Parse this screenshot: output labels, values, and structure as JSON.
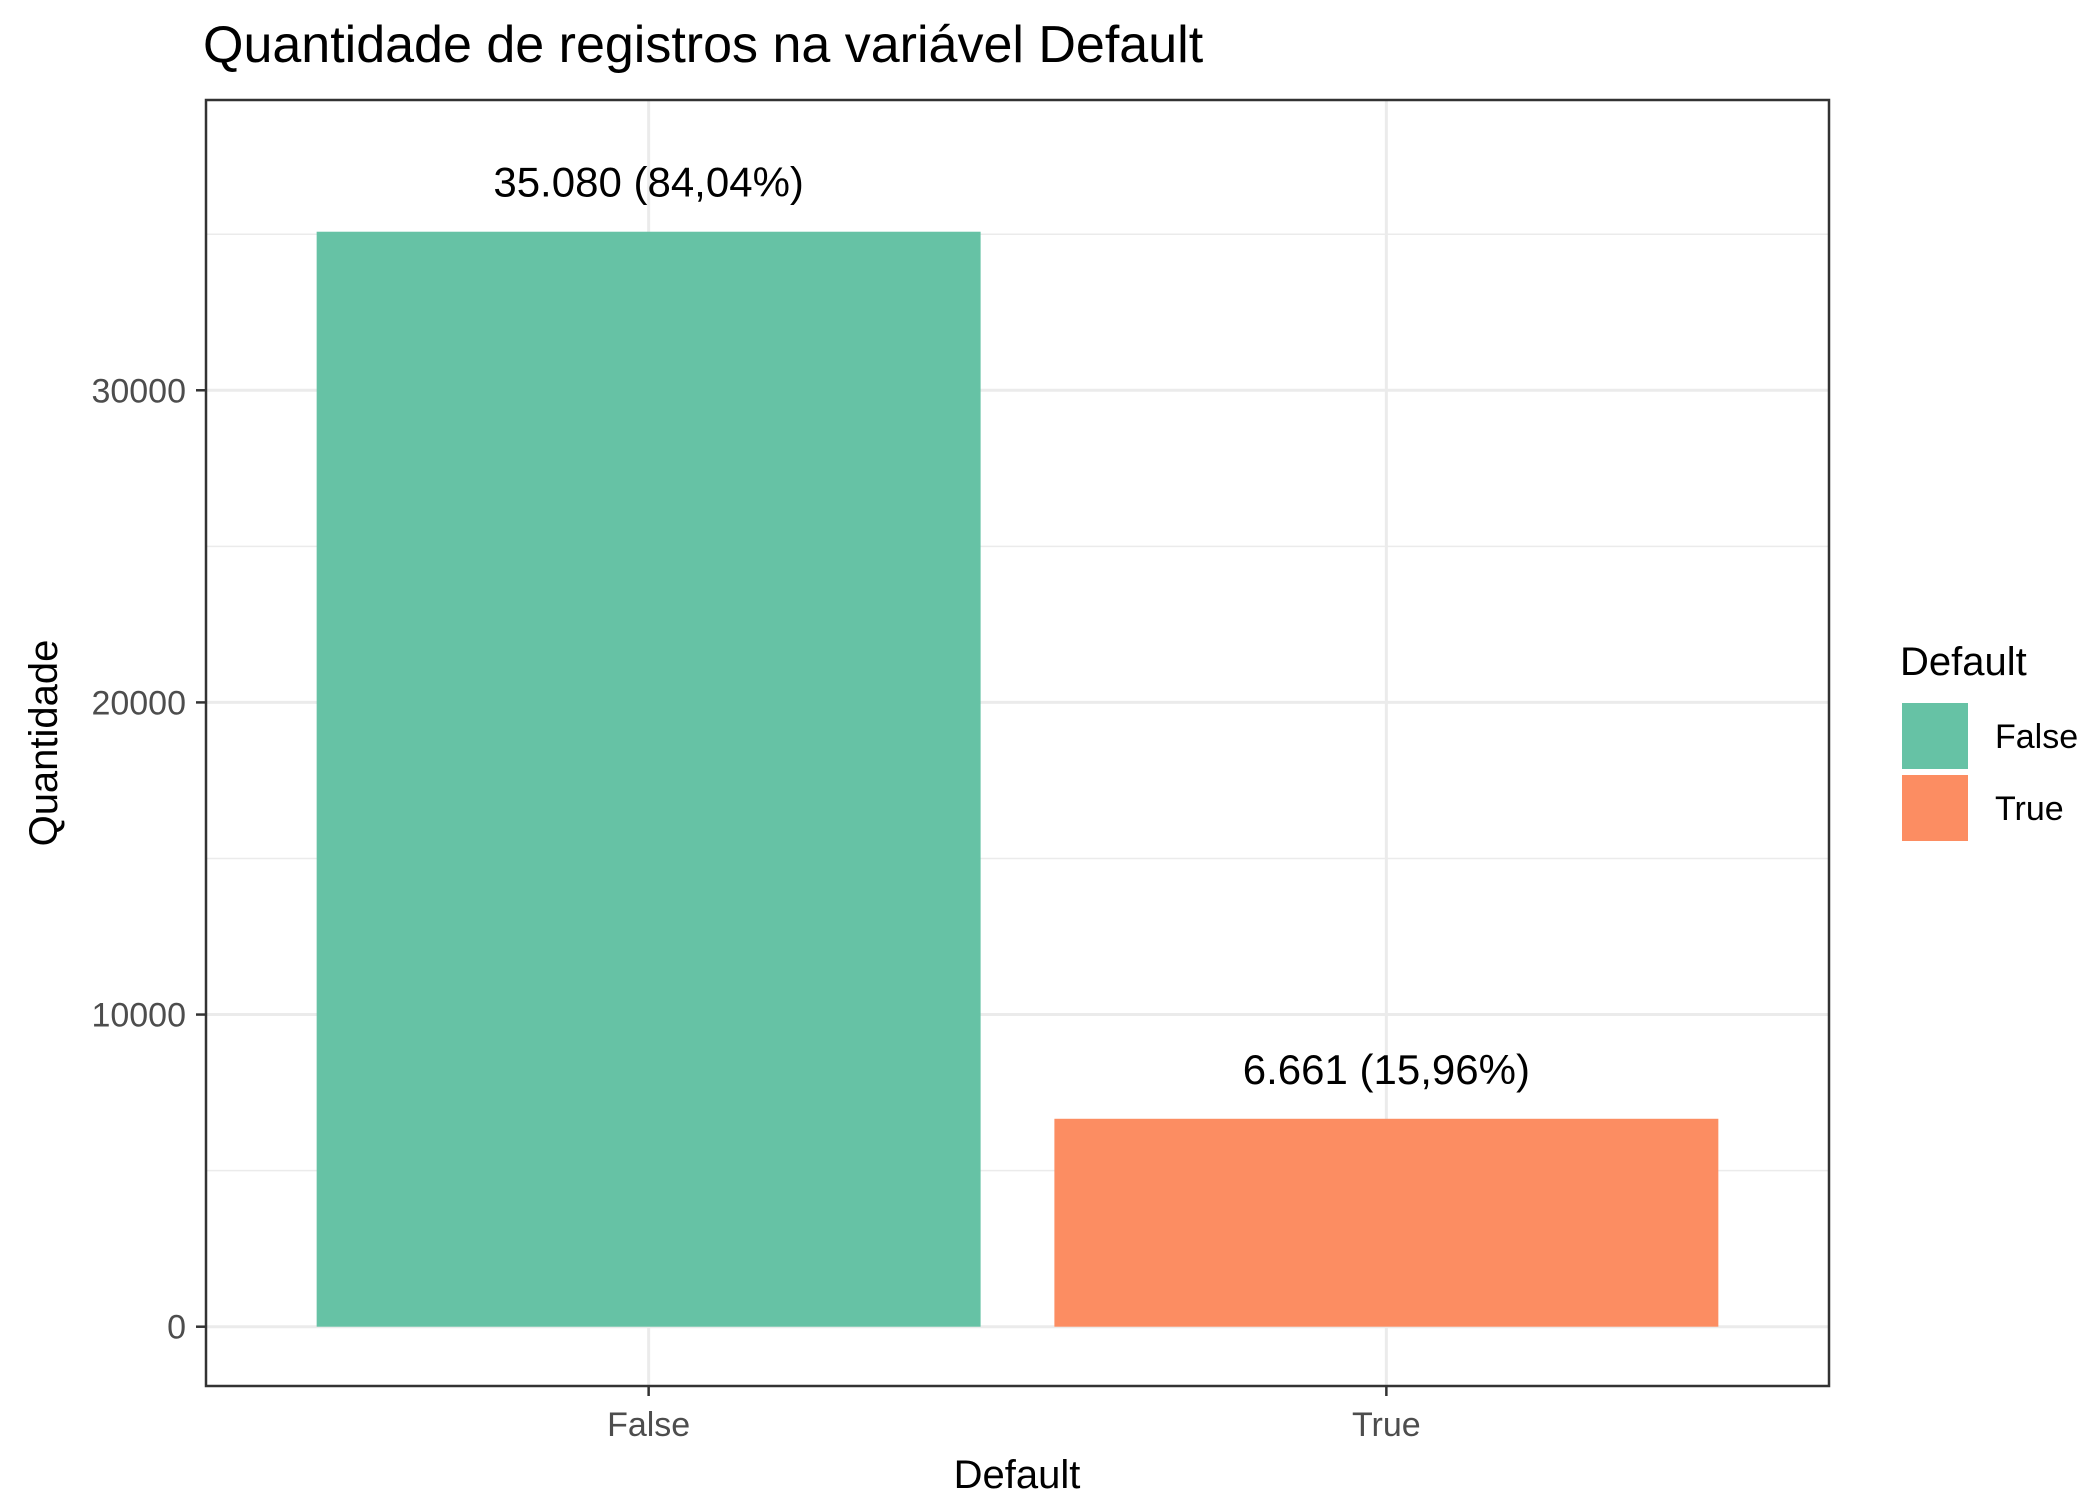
{
  "chart_data": {
    "type": "bar",
    "title": "Quantidade de registros na variável Default",
    "xlabel": "Default",
    "ylabel": "Quantidade",
    "categories": [
      "False",
      "True"
    ],
    "values": [
      35080,
      6661
    ],
    "data_labels": [
      "35.080 (84,04%)",
      "6.661 (15,96%)"
    ],
    "colors": [
      "#66c2a5",
      "#fc8d62"
    ],
    "ylim": [
      -1900,
      39300
    ],
    "yticks": [
      0,
      10000,
      20000,
      30000
    ],
    "ytick_labels": [
      "0",
      "10000",
      "20000",
      "30000"
    ],
    "grid": true,
    "legend": {
      "title": "Default",
      "position": "right",
      "entries": [
        "False",
        "True"
      ]
    }
  }
}
